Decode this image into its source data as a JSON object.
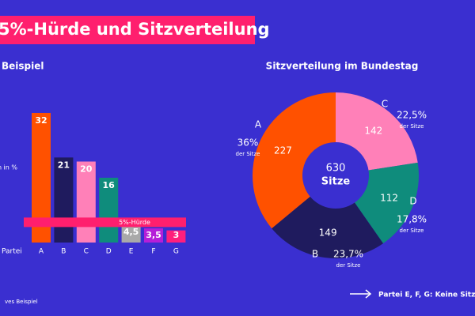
{
  "title": "5%-Hürde und Sitzverteilung",
  "footnote": "ves Beispiel",
  "chart_data": [
    {
      "type": "bar",
      "title": "Beispiel",
      "ylabel": "mmen in %",
      "xlabel": "Partei",
      "categories": [
        "A",
        "B",
        "C",
        "D",
        "E",
        "F",
        "G"
      ],
      "values": [
        32,
        21,
        20,
        16,
        4.5,
        3.5,
        3
      ],
      "value_labels": [
        "32",
        "21",
        "20",
        "16",
        "4,5",
        "3,5",
        "3"
      ],
      "colors": [
        "#ff5100",
        "#1f1b5e",
        "#ff80b8",
        "#0f8c7c",
        "#a9a9a9",
        "#b51ed8",
        "#ff1f7c"
      ],
      "ylim": [
        0,
        35
      ],
      "threshold": 5,
      "threshold_label": "5%-Hürde"
    },
    {
      "type": "donut",
      "title": "Sitzverteilung im Bundestag",
      "categories": [
        "C",
        "D",
        "B",
        "A"
      ],
      "values": [
        142,
        112,
        149,
        227
      ],
      "colors": [
        "#ff80b8",
        "#0f8c7c",
        "#1f1b5e",
        "#ff5100"
      ],
      "share_labels": [
        "22,5%",
        "17,8%",
        "23,7%",
        "36%"
      ],
      "share_note": "der Sitze",
      "total": 630,
      "total_label": "Sitze",
      "note": "Partei E, F, G: Keine Sitze"
    }
  ]
}
